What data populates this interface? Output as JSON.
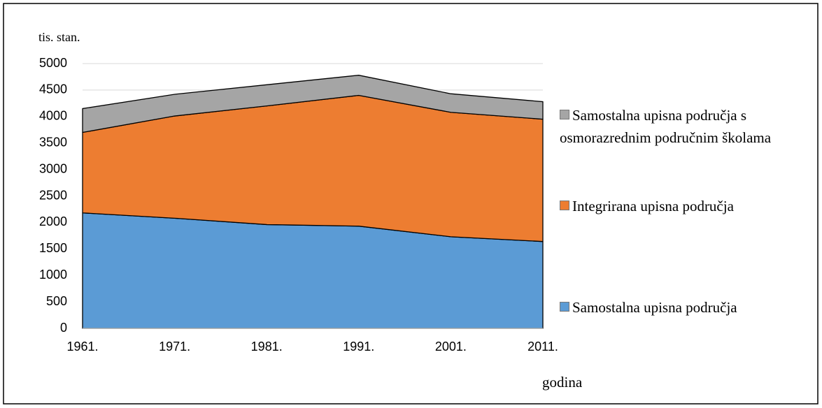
{
  "chart_data": {
    "type": "area",
    "stacked": true,
    "ylabel": "tis. stan.",
    "xlabel": "godina",
    "categories": [
      "1961.",
      "1971.",
      "1981.",
      "1991.",
      "2001.",
      "2011."
    ],
    "series": [
      {
        "name": "Samostalna upisna područja",
        "color": "#5b9bd5",
        "values": [
          2180,
          2080,
          1960,
          1930,
          1730,
          1640
        ]
      },
      {
        "name": "Integrirana upisna područja",
        "color": "#ed7d31",
        "values": [
          1520,
          1930,
          2240,
          2470,
          2350,
          2310
        ]
      },
      {
        "name": "Samostalna upisna područja s osmorazrednim područnim školama",
        "color": "#a5a5a5",
        "values": [
          450,
          410,
          400,
          380,
          350,
          330
        ]
      }
    ],
    "ylim": [
      0,
      5000
    ],
    "yticks": [
      0,
      500,
      1000,
      1500,
      2000,
      2500,
      3000,
      3500,
      4000,
      4500,
      5000
    ],
    "grid": true
  }
}
